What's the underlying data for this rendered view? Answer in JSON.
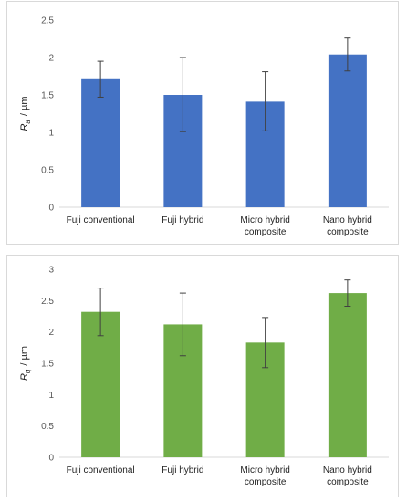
{
  "chart_data": [
    {
      "type": "bar",
      "categories": [
        "Fuji conventional",
        "Fuji hybrid",
        "Micro hybrid composite",
        "Nano hybrid composite"
      ],
      "category_lines": [
        [
          "Fuji conventional"
        ],
        [
          "Fuji hybrid"
        ],
        [
          "Micro hybrid",
          "composite"
        ],
        [
          "Nano hybrid",
          "composite"
        ]
      ],
      "values": [
        1.71,
        1.5,
        1.41,
        2.04
      ],
      "error_high": [
        1.95,
        2.0,
        1.81,
        2.26
      ],
      "error_low": [
        1.47,
        1.01,
        1.02,
        1.82
      ],
      "ylabel_symbol": "R",
      "ylabel_sub": "a",
      "ylabel_unit": "/ µm",
      "ylim": [
        0,
        2.5
      ],
      "yticks": [
        "0",
        "0.5",
        "1",
        "1.5",
        "2",
        "2.5"
      ],
      "yticks_values": [
        0,
        0.5,
        1,
        1.5,
        2,
        2.5
      ],
      "bar_color": "#4472c4",
      "grid": false
    },
    {
      "type": "bar",
      "categories": [
        "Fuji conventional",
        "Fuji hybrid",
        "Micro hybrid composite",
        "Nano hybrid composite"
      ],
      "category_lines": [
        [
          "Fuji conventional"
        ],
        [
          "Fuji hybrid"
        ],
        [
          "Micro hybrid",
          "composite"
        ],
        [
          "Nano hybrid",
          "composite"
        ]
      ],
      "values": [
        2.32,
        2.12,
        1.83,
        2.62
      ],
      "error_high": [
        2.7,
        2.62,
        2.23,
        2.83
      ],
      "error_low": [
        1.94,
        1.62,
        1.43,
        2.41
      ],
      "ylabel_symbol": "R",
      "ylabel_sub": "q",
      "ylabel_unit": "/ µm",
      "ylim": [
        0,
        3
      ],
      "yticks": [
        "0",
        "0.5",
        "1",
        "1.5",
        "2",
        "2.5",
        "3"
      ],
      "yticks_values": [
        0,
        0.5,
        1,
        1.5,
        2,
        2.5,
        3
      ],
      "bar_color": "#70ad47",
      "grid": false
    }
  ]
}
